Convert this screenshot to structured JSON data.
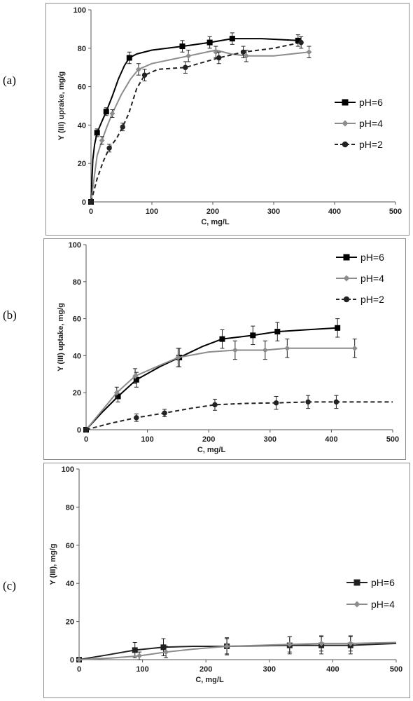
{
  "panels": [
    {
      "label": "(a)"
    },
    {
      "label": "(b)"
    },
    {
      "label": "(c)"
    }
  ],
  "chart_data": [
    {
      "type": "line",
      "xlabel": "C, mg/L",
      "ylabel": "Y (III) uprake, mg/g",
      "xlim": [
        0,
        500
      ],
      "ylim": [
        0,
        100
      ],
      "xticks": [
        0,
        100,
        200,
        300,
        400,
        500
      ],
      "yticks": [
        0,
        20,
        40,
        60,
        80,
        100
      ],
      "legend_position": "right",
      "series": [
        {
          "name": "pH=6",
          "color": "#000000",
          "dash": "solid",
          "marker": "square",
          "x": [
            0,
            10,
            25,
            63,
            150,
            195,
            232,
            340
          ],
          "y": [
            0,
            36,
            47,
            75,
            81,
            83,
            85,
            84
          ],
          "err": [
            0,
            2,
            2,
            3,
            3,
            3,
            3,
            3
          ],
          "curve_x": [
            0,
            3,
            6,
            10,
            18,
            25,
            35,
            45,
            55,
            63,
            75,
            100,
            150,
            195,
            232,
            280,
            340
          ],
          "curve_y": [
            0,
            22,
            30,
            36,
            42,
            47,
            55,
            64,
            71,
            75,
            77,
            79,
            81,
            83,
            85,
            85,
            84
          ]
        },
        {
          "name": "pH=4",
          "color": "#8c8c8c",
          "dash": "solid",
          "marker": "diamond",
          "x": [
            0,
            18,
            35,
            78,
            160,
            205,
            255,
            358
          ],
          "y": [
            0,
            32,
            46,
            69,
            76,
            78,
            76,
            78
          ],
          "err": [
            0,
            2,
            2,
            3,
            3,
            3,
            3,
            3
          ],
          "curve_x": [
            0,
            5,
            10,
            18,
            26,
            35,
            50,
            65,
            78,
            100,
            160,
            205,
            230,
            255,
            300,
            358
          ],
          "curve_y": [
            0,
            12,
            24,
            32,
            39,
            46,
            56,
            64,
            69,
            72,
            76,
            79,
            77,
            76,
            76,
            78
          ]
        },
        {
          "name": "pH=2",
          "color": "#222222",
          "dash": "dashed",
          "marker": "circle",
          "x": [
            0,
            30,
            52,
            88,
            155,
            210,
            250,
            345
          ],
          "y": [
            0,
            28,
            39,
            66,
            70,
            75,
            78,
            83
          ],
          "err": [
            0,
            2,
            2,
            3,
            3,
            3,
            3,
            3
          ],
          "curve_x": [
            0,
            10,
            20,
            30,
            42,
            52,
            62,
            75,
            88,
            110,
            155,
            210,
            250,
            300,
            345
          ],
          "curve_y": [
            0,
            12,
            21,
            28,
            33,
            39,
            46,
            59,
            66,
            69,
            70,
            75,
            78,
            80,
            83
          ]
        }
      ]
    },
    {
      "type": "line",
      "xlabel": "C, mg/L",
      "ylabel": "Y (III) uptake, mg/g",
      "xlim": [
        0,
        500
      ],
      "ylim": [
        0,
        100
      ],
      "xticks": [
        0,
        100,
        200,
        300,
        400,
        500
      ],
      "yticks": [
        0,
        20,
        40,
        60,
        80,
        100
      ],
      "legend_position": "top-right",
      "series": [
        {
          "name": "pH=6",
          "color": "#000000",
          "dash": "solid",
          "marker": "square",
          "x": [
            0,
            52,
            82,
            152,
            222,
            272,
            312,
            410
          ],
          "y": [
            0,
            18,
            27,
            39,
            49,
            51,
            53,
            55
          ],
          "err": [
            0,
            3,
            4,
            5,
            5,
            5,
            5,
            5
          ],
          "curve_x": [
            0,
            25,
            52,
            82,
            120,
            152,
            190,
            222,
            272,
            312,
            360,
            410
          ],
          "curve_y": [
            0,
            9,
            18,
            27,
            34,
            39,
            45,
            49,
            51,
            53,
            54,
            55
          ]
        },
        {
          "name": "pH=4",
          "color": "#8c8c8c",
          "dash": "solid",
          "marker": "diamond",
          "x": [
            0,
            50,
            80,
            150,
            243,
            292,
            328,
            438
          ],
          "y": [
            0,
            20,
            29,
            39,
            43,
            43,
            44,
            44
          ],
          "err": [
            0,
            3,
            4,
            5,
            5,
            5,
            5,
            5
          ],
          "curve_x": [
            0,
            25,
            50,
            80,
            115,
            150,
            200,
            243,
            292,
            328,
            380,
            438
          ],
          "curve_y": [
            0,
            10,
            20,
            29,
            34,
            39,
            42,
            43,
            43,
            44,
            44,
            44
          ]
        },
        {
          "name": "pH=2",
          "color": "#222222",
          "dash": "dashed",
          "marker": "circle",
          "x": [
            0,
            82,
            128,
            210,
            310,
            362,
            408
          ],
          "y": [
            0,
            6.5,
            9,
            13.5,
            14.5,
            15,
            15
          ],
          "err": [
            0,
            2,
            2,
            3,
            3.5,
            3.5,
            3.5
          ],
          "curve_x": [
            0,
            40,
            82,
            128,
            170,
            210,
            260,
            310,
            362,
            408,
            450,
            500
          ],
          "curve_y": [
            0,
            3.5,
            6.5,
            9,
            11.5,
            13.5,
            14.2,
            14.5,
            15,
            15,
            15,
            15
          ]
        }
      ]
    },
    {
      "type": "line",
      "xlabel": "C, mg/L",
      "ylabel": "Y (III), mg/g",
      "xlim": [
        0,
        500
      ],
      "ylim": [
        0,
        100
      ],
      "xticks": [
        0,
        100,
        200,
        300,
        400,
        500
      ],
      "yticks": [
        0,
        20,
        40,
        60,
        80,
        100
      ],
      "legend_position": "right",
      "series": [
        {
          "name": "pH=6",
          "color": "#222222",
          "dash": "solid",
          "marker": "square",
          "x": [
            0,
            88,
            133,
            233,
            332,
            382,
            428
          ],
          "y": [
            0,
            5,
            6.5,
            7,
            7.5,
            7.5,
            7.5
          ],
          "err": [
            0,
            4,
            4.5,
            4.5,
            4.5,
            4.5,
            4.5
          ],
          "curve_x": [
            0,
            45,
            88,
            133,
            180,
            233,
            332,
            382,
            428,
            500
          ],
          "curve_y": [
            0,
            2.5,
            5,
            6.5,
            7,
            7,
            7.5,
            7.5,
            7.5,
            8.5
          ]
        },
        {
          "name": "pH=4",
          "color": "#8c8c8c",
          "dash": "solid",
          "marker": "diamond",
          "x": [
            0,
            95,
            137,
            233,
            332,
            382,
            428
          ],
          "y": [
            0,
            2,
            4,
            7,
            8,
            8.5,
            8.5
          ],
          "err": [
            0,
            2,
            3,
            4,
            4,
            4,
            4
          ],
          "curve_x": [
            0,
            50,
            95,
            137,
            180,
            233,
            332,
            382,
            428,
            500
          ],
          "curve_y": [
            0,
            0.8,
            2,
            4,
            5.5,
            7,
            8,
            8.5,
            8.5,
            9
          ]
        }
      ]
    }
  ]
}
